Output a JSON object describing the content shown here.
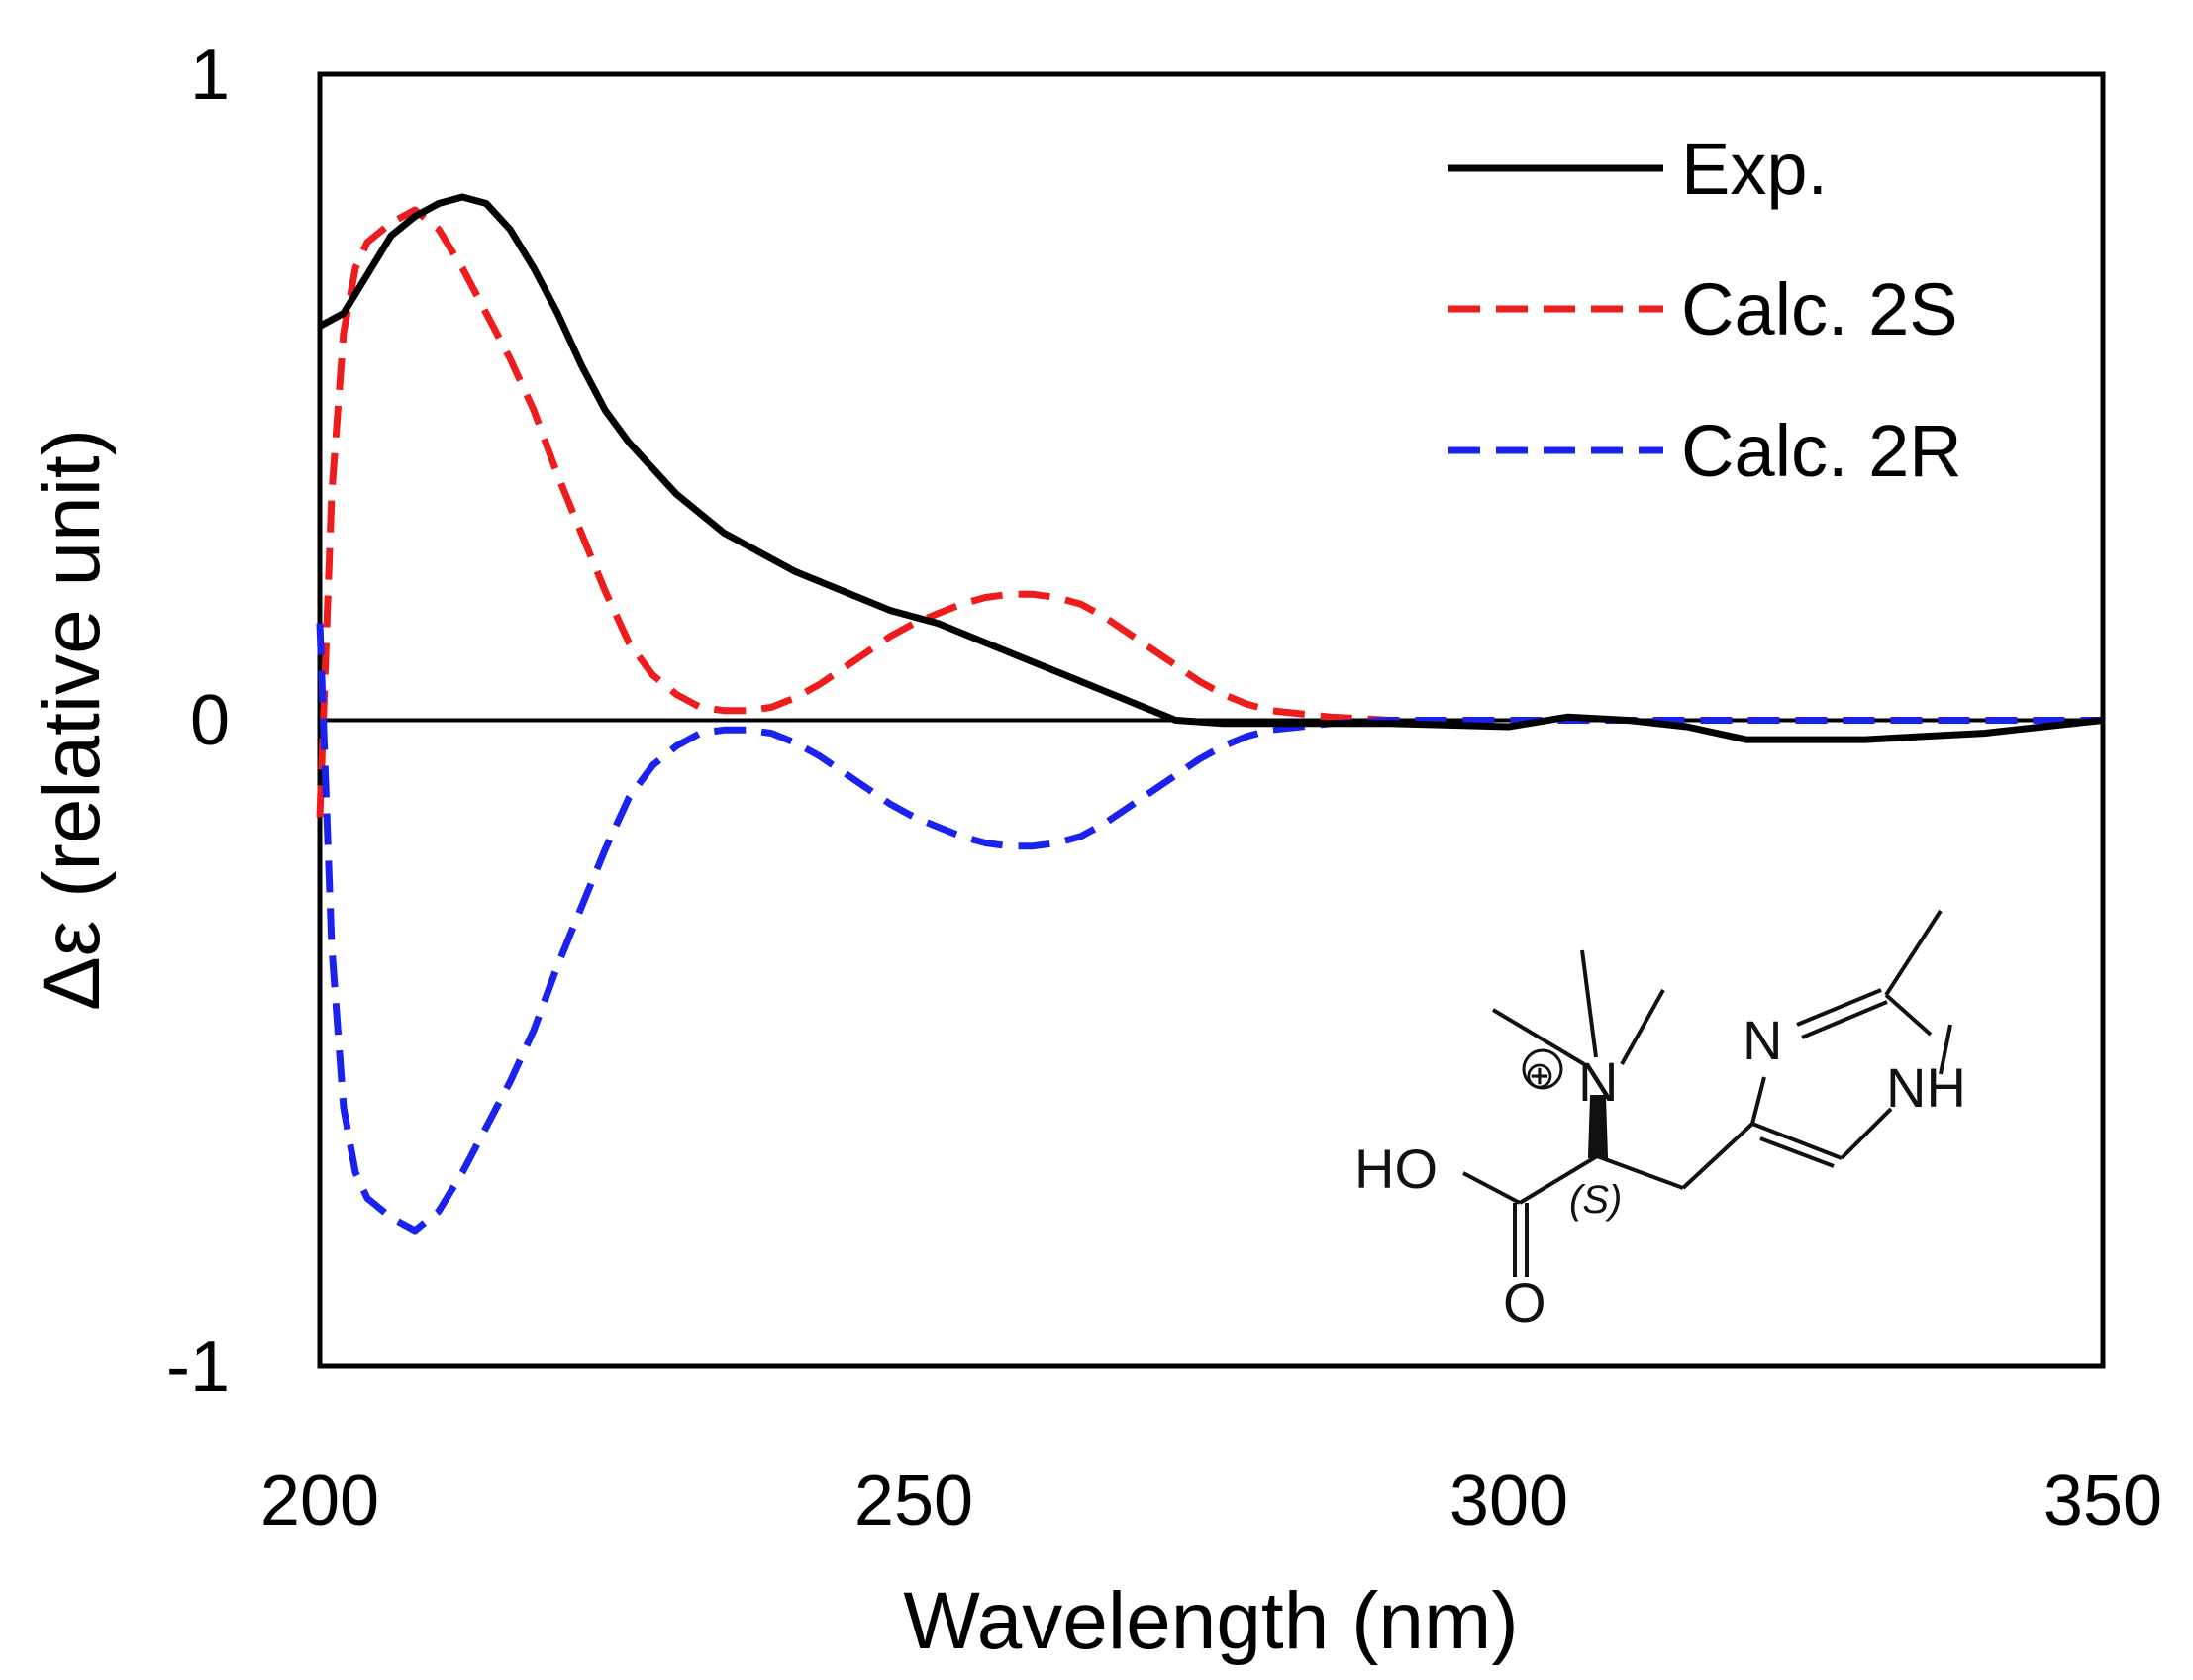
{
  "chart_data": {
    "type": "line",
    "title": "",
    "xlabel": "Wavelength (nm)",
    "ylabel": "Δε (relative unit)",
    "xlim": [
      200,
      350
    ],
    "ylim": [
      -1,
      1
    ],
    "xticks": [
      "200",
      "250",
      "300",
      "350"
    ],
    "yticks": [
      "1",
      "0",
      "-1"
    ],
    "grid": false,
    "legend_position": "top-right",
    "series": [
      {
        "name": "Exp.",
        "color": "#000000",
        "style": "solid",
        "x": [
          200,
          202,
          204,
          206,
          208,
          210,
          212,
          214,
          216,
          218,
          220,
          222,
          224,
          226,
          228,
          230,
          232,
          234,
          236,
          238,
          240,
          244,
          248,
          252,
          256,
          260,
          264,
          268,
          272,
          276,
          280,
          290,
          300,
          305,
          310,
          315,
          320,
          325,
          330,
          335,
          340,
          345,
          350
        ],
        "y": [
          0.61,
          0.63,
          0.69,
          0.75,
          0.78,
          0.8,
          0.81,
          0.8,
          0.76,
          0.7,
          0.63,
          0.55,
          0.48,
          0.43,
          0.39,
          0.35,
          0.32,
          0.29,
          0.27,
          0.25,
          0.23,
          0.2,
          0.17,
          0.15,
          0.12,
          0.09,
          0.06,
          0.03,
          0.0,
          -0.005,
          -0.005,
          -0.005,
          -0.01,
          0.005,
          0.0,
          -0.01,
          -0.03,
          -0.03,
          -0.03,
          -0.025,
          -0.02,
          -0.01,
          0.0
        ]
      },
      {
        "name": "Calc. 2S",
        "color": "#ee1c1c",
        "style": "dashed",
        "x": [
          200,
          201,
          202,
          203,
          204,
          206,
          208,
          210,
          212,
          214,
          216,
          218,
          220,
          222,
          224,
          226,
          228,
          230,
          232,
          234,
          236,
          238,
          240,
          242,
          244,
          246,
          248,
          250,
          252,
          254,
          256,
          258,
          260,
          262,
          264,
          266,
          268,
          270,
          272,
          274,
          276,
          278,
          280,
          285,
          290,
          300,
          310,
          320,
          330,
          340,
          350
        ],
        "y": [
          -0.15,
          0.35,
          0.6,
          0.7,
          0.74,
          0.77,
          0.79,
          0.76,
          0.7,
          0.63,
          0.56,
          0.48,
          0.38,
          0.29,
          0.2,
          0.12,
          0.07,
          0.04,
          0.02,
          0.015,
          0.015,
          0.02,
          0.035,
          0.055,
          0.08,
          0.105,
          0.13,
          0.15,
          0.165,
          0.18,
          0.19,
          0.195,
          0.195,
          0.19,
          0.18,
          0.16,
          0.135,
          0.11,
          0.085,
          0.06,
          0.04,
          0.025,
          0.015,
          0.005,
          0.0,
          0.0,
          0.0,
          0.0,
          0.0,
          0.0,
          0.0
        ]
      },
      {
        "name": "Calc. 2R",
        "color": "#1c22ee",
        "style": "dashed",
        "x": [
          200,
          201,
          202,
          203,
          204,
          206,
          208,
          210,
          212,
          214,
          216,
          218,
          220,
          222,
          224,
          226,
          228,
          230,
          232,
          234,
          236,
          238,
          240,
          242,
          244,
          246,
          248,
          250,
          252,
          254,
          256,
          258,
          260,
          262,
          264,
          266,
          268,
          270,
          272,
          274,
          276,
          278,
          280,
          285,
          290,
          300,
          310,
          320,
          330,
          340,
          350
        ],
        "y": [
          0.15,
          -0.35,
          -0.6,
          -0.7,
          -0.74,
          -0.77,
          -0.79,
          -0.76,
          -0.7,
          -0.63,
          -0.56,
          -0.48,
          -0.38,
          -0.29,
          -0.2,
          -0.12,
          -0.07,
          -0.04,
          -0.02,
          -0.015,
          -0.015,
          -0.02,
          -0.035,
          -0.055,
          -0.08,
          -0.105,
          -0.13,
          -0.15,
          -0.165,
          -0.18,
          -0.19,
          -0.195,
          -0.195,
          -0.19,
          -0.18,
          -0.16,
          -0.135,
          -0.11,
          -0.085,
          -0.06,
          -0.04,
          -0.025,
          -0.015,
          -0.005,
          0.0,
          0.0,
          0.0,
          0.0,
          0.0,
          0.0,
          0.0
        ]
      }
    ],
    "inset_structure": {
      "atoms": [
        "N",
        "N",
        "NH",
        "HO",
        "O"
      ],
      "charge": "⊕",
      "stereo_label": "(S)"
    }
  }
}
